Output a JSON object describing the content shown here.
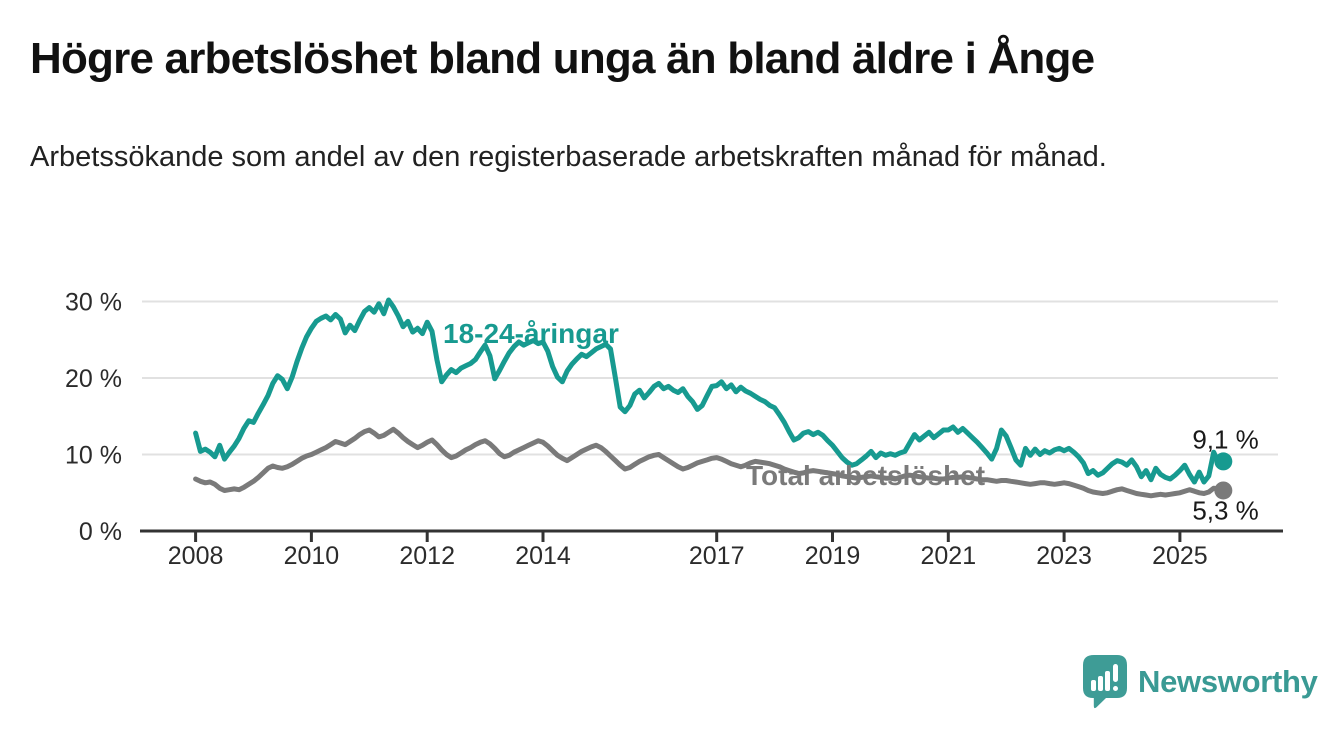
{
  "title": "Högre arbetslöshet bland unga än bland äldre i Ånge",
  "subtitle": "Arbetssökande som andel av den registerbaserade arbetskraften månad för månad.",
  "logo": {
    "text": "Newsworthy",
    "icon": "newsworthy-speech-bubble-bar-chart-icon",
    "color": "#3A9A94"
  },
  "chart_data": {
    "type": "line",
    "frequency": "monthly",
    "x_start": "2008-01",
    "x_end": "2025-10",
    "xlabel": "",
    "ylabel": "",
    "ylim": [
      0,
      32
    ],
    "grid": "horizontal",
    "legend": "inline-labels",
    "y_ticks": [
      {
        "value": 0,
        "label": "0 %"
      },
      {
        "value": 10,
        "label": "10 %"
      },
      {
        "value": 20,
        "label": "20 %"
      },
      {
        "value": 30,
        "label": "30 %"
      }
    ],
    "x_ticks": [
      {
        "value": 2008,
        "label": "2008"
      },
      {
        "value": 2010,
        "label": "2010"
      },
      {
        "value": 2012,
        "label": "2012"
      },
      {
        "value": 2014,
        "label": "2014"
      },
      {
        "value": 2017,
        "label": "2017"
      },
      {
        "value": 2019,
        "label": "2019"
      },
      {
        "value": 2021,
        "label": "2021"
      },
      {
        "value": 2023,
        "label": "2023"
      },
      {
        "value": 2025,
        "label": "2025"
      }
    ],
    "series": [
      {
        "name": "18-24-åringar",
        "color": "#179A90",
        "end_label": "9,1 %",
        "end_value": 9.1,
        "values": [
          12.8,
          10.4,
          10.7,
          10.3,
          9.7,
          11.2,
          9.4,
          10.3,
          11.1,
          12.1,
          13.4,
          14.4,
          14.2,
          15.4,
          16.5,
          17.7,
          19.3,
          20.3,
          19.8,
          18.6,
          20.1,
          22.1,
          23.9,
          25.4,
          26.5,
          27.4,
          27.8,
          28.1,
          27.6,
          28.3,
          27.7,
          25.9,
          26.9,
          26.2,
          27.5,
          28.7,
          29.2,
          28.6,
          29.7,
          28.4,
          30.2,
          29.3,
          28.1,
          26.7,
          27.4,
          26.0,
          26.5,
          25.8,
          27.3,
          26.1,
          22.4,
          19.5,
          20.4,
          21.1,
          20.7,
          21.3,
          21.6,
          21.9,
          22.4,
          23.4,
          24.3,
          22.9,
          19.9,
          21.0,
          22.2,
          23.3,
          24.1,
          24.7,
          24.3,
          24.6,
          24.9,
          24.5,
          24.7,
          23.5,
          21.5,
          20.1,
          19.5,
          20.9,
          21.8,
          22.5,
          23.1,
          22.8,
          23.3,
          23.8,
          24.1,
          24.4,
          23.8,
          20.0,
          16.2,
          15.6,
          16.4,
          17.9,
          18.4,
          17.4,
          18.1,
          18.9,
          19.3,
          18.6,
          18.9,
          18.4,
          18.1,
          18.6,
          17.6,
          16.9,
          15.9,
          16.4,
          17.7,
          18.9,
          19.0,
          19.5,
          18.6,
          19.1,
          18.2,
          18.8,
          18.3,
          18.0,
          17.6,
          17.2,
          16.9,
          16.4,
          16.1,
          15.2,
          14.2,
          13.0,
          11.9,
          12.2,
          12.8,
          13.0,
          12.6,
          12.9,
          12.5,
          11.8,
          11.2,
          10.4,
          9.6,
          9.0,
          8.6,
          8.8,
          9.3,
          9.8,
          10.4,
          9.6,
          10.2,
          9.9,
          10.1,
          9.9,
          10.2,
          10.4,
          11.5,
          12.6,
          11.9,
          12.4,
          12.9,
          12.2,
          12.7,
          13.2,
          13.2,
          13.6,
          12.9,
          13.4,
          12.8,
          12.2,
          11.6,
          10.9,
          10.2,
          9.4,
          10.8,
          13.2,
          12.4,
          10.9,
          9.3,
          8.6,
          10.8,
          9.9,
          10.7,
          10.0,
          10.5,
          10.2,
          10.6,
          10.8,
          10.5,
          10.8,
          10.3,
          9.7,
          8.9,
          7.5,
          7.9,
          7.3,
          7.6,
          8.2,
          8.8,
          9.2,
          9.0,
          8.6,
          9.3,
          8.4,
          7.1,
          7.9,
          6.7,
          8.2,
          7.4,
          7.0,
          6.8,
          7.3,
          7.9,
          8.6,
          7.4,
          6.4,
          7.7,
          6.4,
          7.2,
          10.3,
          8.9,
          9.1
        ]
      },
      {
        "name": "Total arbetslöshet",
        "color": "#7A7A7A",
        "end_label": "5,3 %",
        "end_value": 5.3,
        "values": [
          6.8,
          6.5,
          6.3,
          6.4,
          6.1,
          5.6,
          5.3,
          5.4,
          5.5,
          5.4,
          5.7,
          6.1,
          6.5,
          7.0,
          7.6,
          8.2,
          8.5,
          8.3,
          8.2,
          8.4,
          8.7,
          9.1,
          9.5,
          9.8,
          10.0,
          10.3,
          10.6,
          10.9,
          11.3,
          11.7,
          11.5,
          11.3,
          11.7,
          12.1,
          12.6,
          13.0,
          13.2,
          12.8,
          12.3,
          12.5,
          12.9,
          13.3,
          12.8,
          12.2,
          11.7,
          11.3,
          10.9,
          11.2,
          11.6,
          11.9,
          11.3,
          10.6,
          10.0,
          9.6,
          9.8,
          10.2,
          10.6,
          10.9,
          11.3,
          11.6,
          11.8,
          11.4,
          10.8,
          10.1,
          9.7,
          9.9,
          10.3,
          10.6,
          10.9,
          11.2,
          11.5,
          11.8,
          11.6,
          11.1,
          10.5,
          9.9,
          9.5,
          9.2,
          9.6,
          10.0,
          10.4,
          10.7,
          11.0,
          11.2,
          10.9,
          10.4,
          9.8,
          9.2,
          8.6,
          8.1,
          8.3,
          8.7,
          9.1,
          9.4,
          9.7,
          9.9,
          10.0,
          9.6,
          9.2,
          8.8,
          8.4,
          8.1,
          8.3,
          8.6,
          8.9,
          9.1,
          9.3,
          9.5,
          9.6,
          9.4,
          9.1,
          8.8,
          8.6,
          8.4,
          8.6,
          8.9,
          9.1,
          9.0,
          8.9,
          8.8,
          8.6,
          8.4,
          8.1,
          7.9,
          7.7,
          7.5,
          7.6,
          7.8,
          7.9,
          7.8,
          7.7,
          7.6,
          7.5,
          7.4,
          7.2,
          7.1,
          7.0,
          6.9,
          7.0,
          7.1,
          7.2,
          7.1,
          7.0,
          6.9,
          6.9,
          6.8,
          7.0,
          7.2,
          7.3,
          7.2,
          7.1,
          7.0,
          6.9,
          6.9,
          6.8,
          6.8,
          6.9,
          7.0,
          7.0,
          7.1,
          7.0,
          6.9,
          6.8,
          6.7,
          6.7,
          6.6,
          6.5,
          6.6,
          6.6,
          6.5,
          6.4,
          6.3,
          6.2,
          6.1,
          6.2,
          6.3,
          6.3,
          6.2,
          6.1,
          6.2,
          6.3,
          6.2,
          6.0,
          5.8,
          5.6,
          5.3,
          5.1,
          5.0,
          4.9,
          5.0,
          5.2,
          5.4,
          5.5,
          5.3,
          5.1,
          4.9,
          4.8,
          4.7,
          4.6,
          4.7,
          4.8,
          4.7,
          4.8,
          4.9,
          5.0,
          5.2,
          5.4,
          5.2,
          5.0,
          4.9,
          5.1,
          5.6,
          5.5,
          5.3
        ]
      }
    ]
  }
}
